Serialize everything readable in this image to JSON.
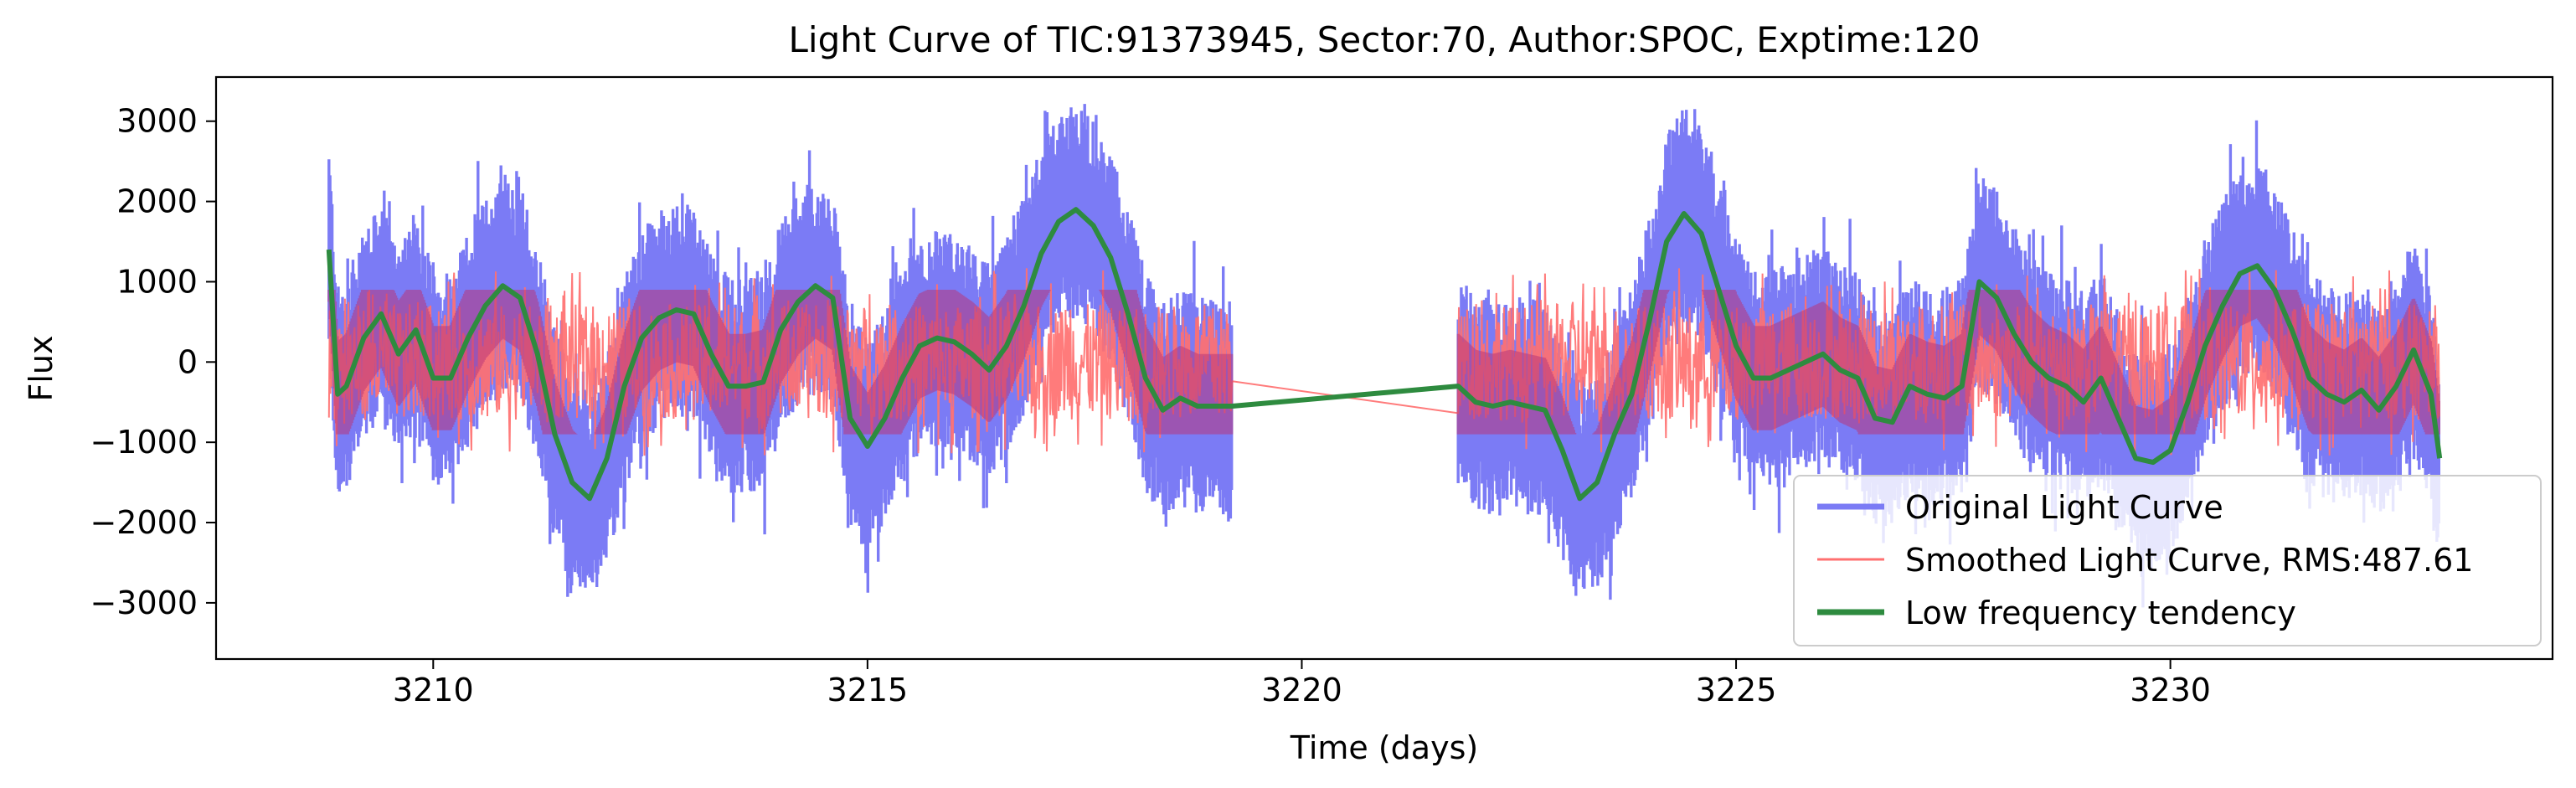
{
  "chart_data": {
    "type": "line",
    "title": "Light Curve of TIC:91373945, Sector:70, Author:SPOC, Exptime:120",
    "xlabel": "Time (days)",
    "ylabel": "Flux",
    "xlim": [
      3207.5,
      3234.4
    ],
    "ylim": [
      -3700,
      3550
    ],
    "xticks": [
      3210,
      3215,
      3220,
      3225,
      3230
    ],
    "yticks": [
      3000,
      2000,
      1000,
      0,
      -1000,
      -2000,
      -3000
    ],
    "ytick_labels": [
      "3000",
      "2000",
      "1000",
      "0",
      "−1000",
      "−2000",
      "−3000"
    ],
    "grid": false,
    "legend_position": "lower-right",
    "segments": [
      [
        3208.8,
        3219.2
      ],
      [
        3221.8,
        3233.1
      ]
    ],
    "series": [
      {
        "name": "Original Light Curve",
        "color": "#7b7bf5",
        "style": "band",
        "legend_text": "Original Light Curve"
      },
      {
        "name": "Smoothed Light Curve",
        "rms": 487.61,
        "color": "#ff7070",
        "style": "line",
        "legend_text": "Smoothed Light Curve, RMS:487.61"
      },
      {
        "name": "Low frequency tendency",
        "color": "#2e8b3f",
        "style": "line",
        "legend_text": "Low frequency tendency",
        "x": [
          3208.8,
          3208.9,
          3209.0,
          3209.2,
          3209.4,
          3209.6,
          3209.8,
          3210.0,
          3210.2,
          3210.4,
          3210.6,
          3210.8,
          3211.0,
          3211.2,
          3211.4,
          3211.6,
          3211.8,
          3212.0,
          3212.2,
          3212.4,
          3212.6,
          3212.8,
          3213.0,
          3213.2,
          3213.4,
          3213.6,
          3213.8,
          3214.0,
          3214.2,
          3214.4,
          3214.6,
          3214.8,
          3215.0,
          3215.2,
          3215.4,
          3215.6,
          3215.8,
          3216.0,
          3216.2,
          3216.4,
          3216.6,
          3216.8,
          3217.0,
          3217.2,
          3217.4,
          3217.6,
          3217.8,
          3218.0,
          3218.2,
          3218.4,
          3218.6,
          3218.8,
          3219.0,
          3219.2,
          3221.8,
          3222.0,
          3222.2,
          3222.4,
          3222.6,
          3222.8,
          3223.0,
          3223.2,
          3223.4,
          3223.6,
          3223.8,
          3224.0,
          3224.2,
          3224.4,
          3224.6,
          3224.8,
          3225.0,
          3225.2,
          3225.4,
          3225.6,
          3225.8,
          3226.0,
          3226.2,
          3226.4,
          3226.6,
          3226.8,
          3227.0,
          3227.2,
          3227.4,
          3227.6,
          3227.8,
          3228.0,
          3228.2,
          3228.4,
          3228.6,
          3228.8,
          3229.0,
          3229.2,
          3229.4,
          3229.6,
          3229.8,
          3230.0,
          3230.2,
          3230.4,
          3230.6,
          3230.8,
          3231.0,
          3231.2,
          3231.4,
          3231.6,
          3231.8,
          3232.0,
          3232.2,
          3232.4,
          3232.6,
          3232.8,
          3233.0,
          3233.1
        ],
        "y": [
          1400,
          -400,
          -300,
          300,
          600,
          100,
          400,
          -200,
          -200,
          300,
          700,
          950,
          800,
          100,
          -900,
          -1500,
          -1700,
          -1200,
          -300,
          300,
          550,
          650,
          600,
          100,
          -300,
          -300,
          -250,
          400,
          750,
          950,
          800,
          -700,
          -1050,
          -700,
          -200,
          200,
          300,
          250,
          100,
          -100,
          200,
          700,
          1350,
          1750,
          1900,
          1700,
          1300,
          600,
          -200,
          -600,
          -450,
          -550,
          -550,
          -550,
          -300,
          -500,
          -550,
          -500,
          -550,
          -600,
          -1100,
          -1700,
          -1500,
          -900,
          -400,
          500,
          1500,
          1850,
          1600,
          900,
          200,
          -200,
          -200,
          -100,
          0,
          100,
          -100,
          -200,
          -700,
          -750,
          -300,
          -400,
          -450,
          -300,
          1000,
          800,
          350,
          0,
          -200,
          -300,
          -500,
          -200,
          -700,
          -1200,
          -1250,
          -1100,
          -500,
          200,
          700,
          1100,
          1200,
          900,
          400,
          -200,
          -400,
          -500,
          -350,
          -600,
          -300,
          150,
          -400,
          -1200
        ]
      }
    ]
  }
}
